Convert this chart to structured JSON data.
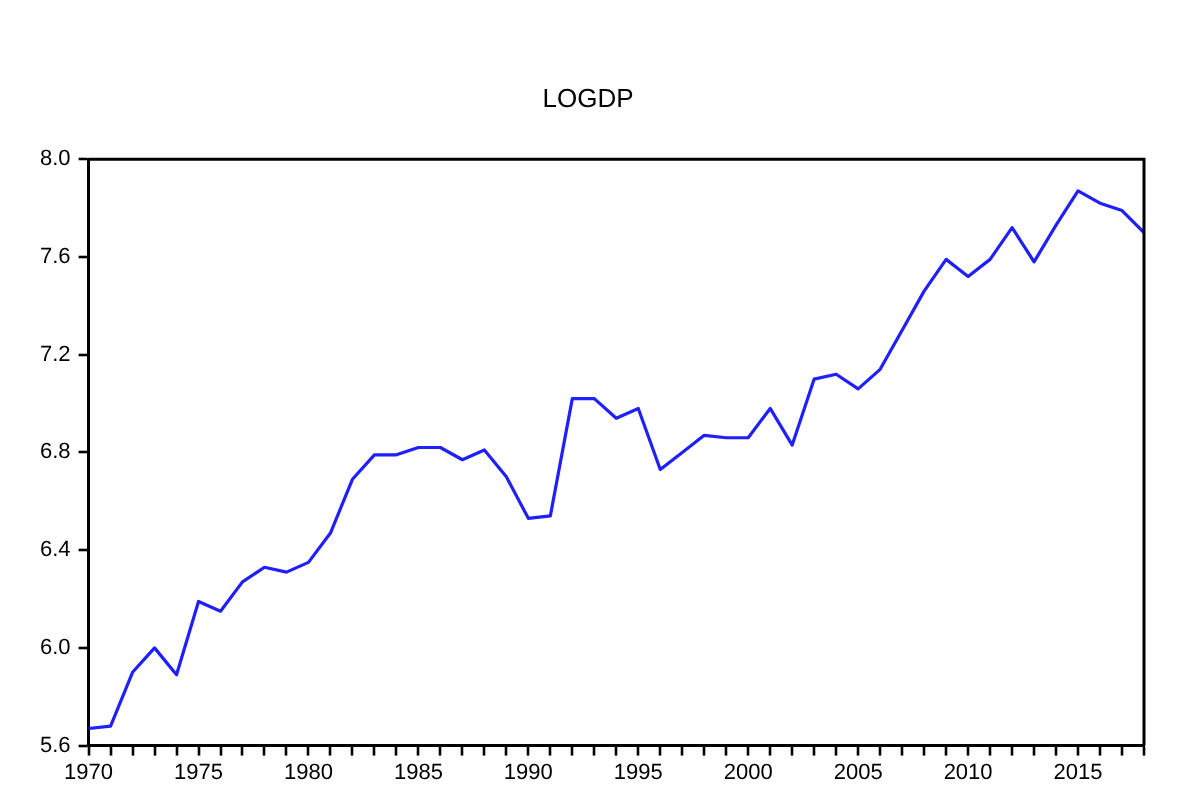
{
  "chart_data": {
    "type": "line",
    "title": "LOGDP",
    "x": [
      1970,
      1971,
      1972,
      1973,
      1974,
      1975,
      1976,
      1977,
      1978,
      1979,
      1980,
      1981,
      1982,
      1983,
      1984,
      1985,
      1986,
      1987,
      1988,
      1989,
      1990,
      1991,
      1992,
      1993,
      1994,
      1995,
      1996,
      1997,
      1998,
      1999,
      2000,
      2001,
      2002,
      2003,
      2004,
      2005,
      2006,
      2007,
      2008,
      2009,
      2010,
      2011,
      2012,
      2013,
      2014,
      2015,
      2016,
      2017,
      2018
    ],
    "series": [
      {
        "color": "#1f1fff",
        "values": [
          5.67,
          5.68,
          5.9,
          6.0,
          5.89,
          6.19,
          6.15,
          6.27,
          6.33,
          6.31,
          6.35,
          6.47,
          6.69,
          6.79,
          6.79,
          6.82,
          6.82,
          6.77,
          6.81,
          6.7,
          6.53,
          6.54,
          7.02,
          7.02,
          6.94,
          6.98,
          6.73,
          6.8,
          6.87,
          6.86,
          6.86,
          6.98,
          6.83,
          7.1,
          7.12,
          7.06,
          7.14,
          7.3,
          7.46,
          7.59,
          7.52,
          7.59,
          7.72,
          7.58,
          7.73,
          7.87,
          7.82,
          7.79,
          7.7
        ]
      }
    ],
    "xlim": [
      1970,
      2018
    ],
    "xticks": [
      1970,
      {
        "value": 1971,
        "label": null
      },
      {
        "value": 1972,
        "label": null
      },
      {
        "value": 1973,
        "label": null
      },
      {
        "value": 1974,
        "label": null
      },
      1975,
      {
        "value": 1976,
        "label": null
      },
      {
        "value": 1977,
        "label": null
      },
      {
        "value": 1978,
        "label": null
      },
      {
        "value": 1979,
        "label": null
      },
      1980,
      {
        "value": 1981,
        "label": null
      },
      {
        "value": 1982,
        "label": null
      },
      {
        "value": 1983,
        "label": null
      },
      {
        "value": 1984,
        "label": null
      },
      1985,
      {
        "value": 1986,
        "label": null
      },
      {
        "value": 1987,
        "label": null
      },
      {
        "value": 1988,
        "label": null
      },
      {
        "value": 1989,
        "label": null
      },
      1990,
      {
        "value": 1991,
        "label": null
      },
      {
        "value": 1992,
        "label": null
      },
      {
        "value": 1993,
        "label": null
      },
      {
        "value": 1994,
        "label": null
      },
      1995,
      {
        "value": 1996,
        "label": null
      },
      {
        "value": 1997,
        "label": null
      },
      {
        "value": 1998,
        "label": null
      },
      {
        "value": 1999,
        "label": null
      },
      2000,
      {
        "value": 2001,
        "label": null
      },
      {
        "value": 2002,
        "label": null
      },
      {
        "value": 2003,
        "label": null
      },
      {
        "value": 2004,
        "label": null
      },
      2005,
      {
        "value": 2006,
        "label": null
      },
      {
        "value": 2007,
        "label": null
      },
      {
        "value": 2008,
        "label": null
      },
      {
        "value": 2009,
        "label": null
      },
      2010,
      {
        "value": 2011,
        "label": null
      },
      {
        "value": 2012,
        "label": null
      },
      {
        "value": 2013,
        "label": null
      },
      {
        "value": 2014,
        "label": null
      },
      2015,
      {
        "value": 2016,
        "label": null
      },
      {
        "value": 2017,
        "label": null
      },
      {
        "value": 2018,
        "label": null
      }
    ],
    "ylim": [
      5.6,
      8.0
    ],
    "yticks": [
      5.6,
      {
        "value": 6.0,
        "label": "6.0"
      },
      6.4,
      6.8,
      7.2,
      7.6,
      {
        "value": 8.0,
        "label": "8.0"
      }
    ],
    "grid": false,
    "legend": false,
    "marker": "none",
    "line_style": "solid"
  }
}
